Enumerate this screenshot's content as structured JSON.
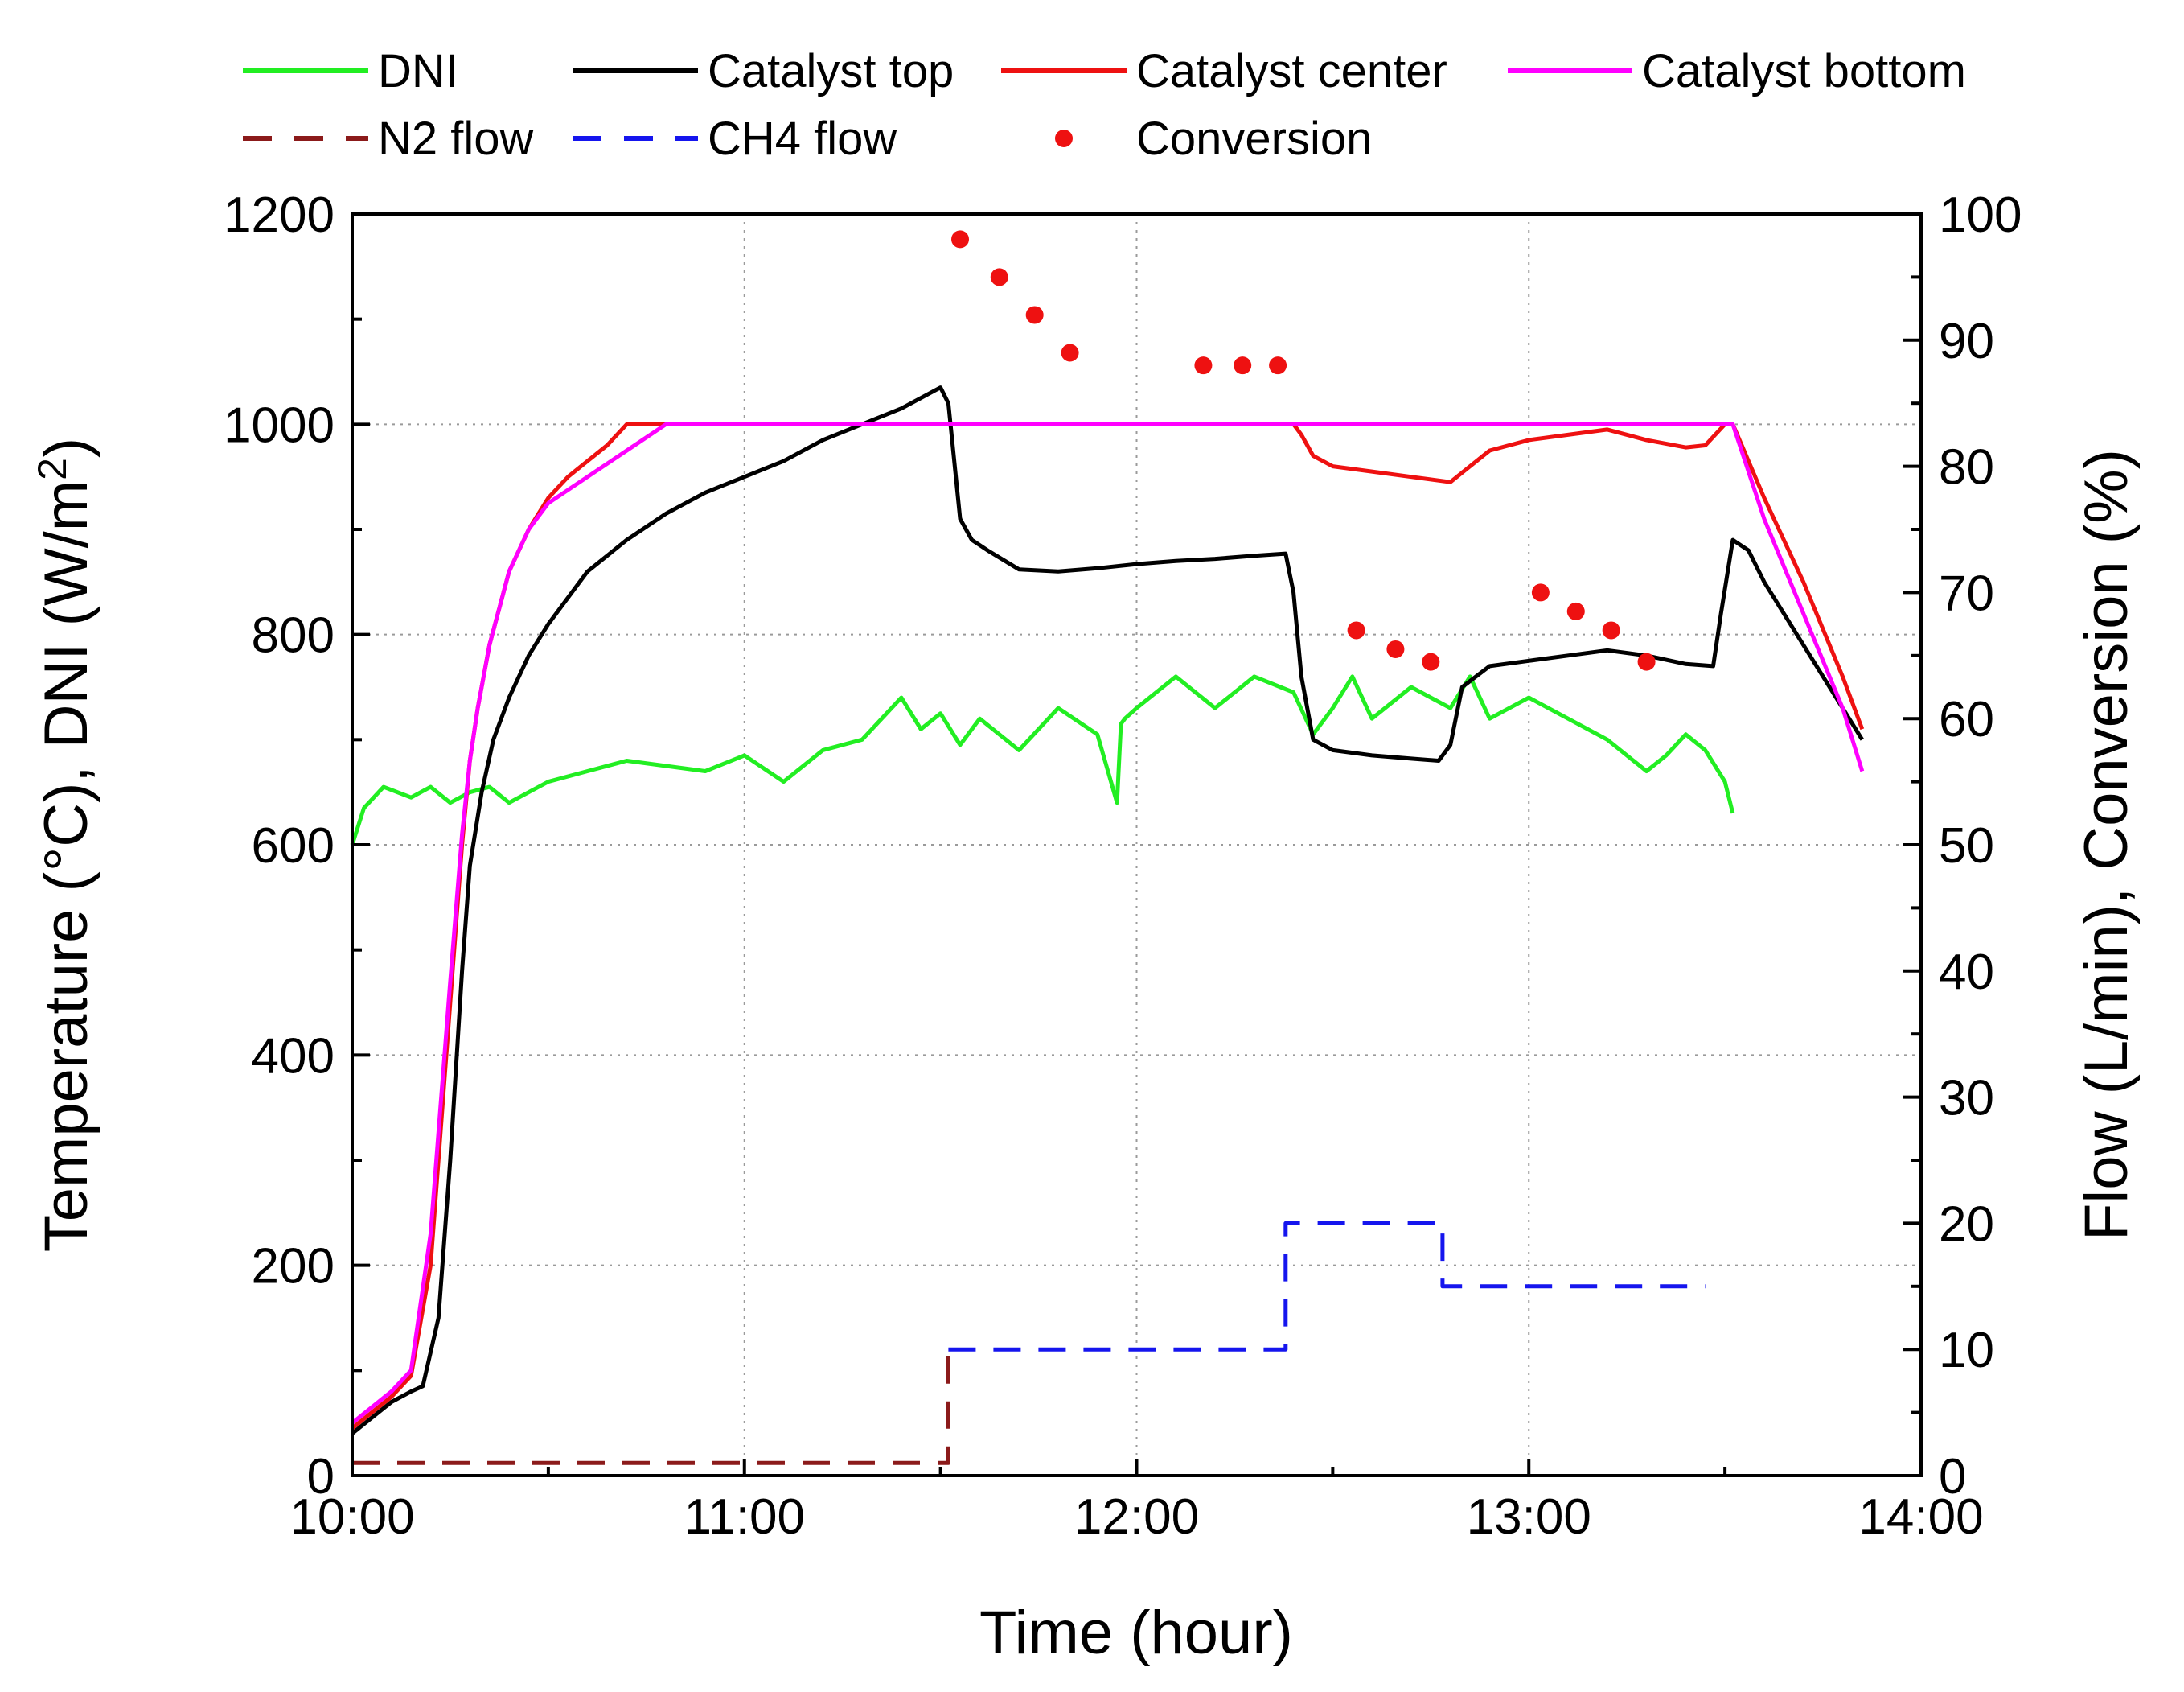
{
  "chart_data": {
    "type": "line",
    "title": "",
    "xlabel": "Time (hour)",
    "ylabel_left": "Temperature (°C), DNI (W/m²)",
    "ylabel_left_parts": [
      "Temperature (°C), DNI (W/m",
      "2",
      ")"
    ],
    "ylabel_right": "Flow (L/min), Conversion (%)",
    "xlim": [
      10,
      14
    ],
    "ylim_left": [
      0,
      1200
    ],
    "ylim_right": [
      0,
      100
    ],
    "grid": "dotted horizontal and vertical at major ticks",
    "legend_position": "top, above plot",
    "x_ticks": [
      {
        "value": 10,
        "label": "10:00"
      },
      {
        "value": 11,
        "label": "11:00"
      },
      {
        "value": 12,
        "label": "12:00"
      },
      {
        "value": 13,
        "label": "13:00"
      },
      {
        "value": 14,
        "label": "14:00"
      }
    ],
    "y_left_ticks": [
      {
        "value": 0,
        "label": "0"
      },
      {
        "value": 200,
        "label": "200"
      },
      {
        "value": 400,
        "label": "400"
      },
      {
        "value": 600,
        "label": "600"
      },
      {
        "value": 800,
        "label": "800"
      },
      {
        "value": 1000,
        "label": "1000"
      },
      {
        "value": 1200,
        "label": "1200"
      }
    ],
    "y_right_ticks": [
      {
        "value": 0,
        "label": "0"
      },
      {
        "value": 10,
        "label": "10"
      },
      {
        "value": 20,
        "label": "20"
      },
      {
        "value": 30,
        "label": "30"
      },
      {
        "value": 40,
        "label": "40"
      },
      {
        "value": 50,
        "label": "50"
      },
      {
        "value": 60,
        "label": "60"
      },
      {
        "value": 70,
        "label": "70"
      },
      {
        "value": 80,
        "label": "80"
      },
      {
        "value": 90,
        "label": "90"
      },
      {
        "value": 100,
        "label": "100"
      }
    ],
    "series": [
      {
        "name": "DNI",
        "axis": "left",
        "color": "#22ee22",
        "style": "solid",
        "x": [
          10.0,
          10.03,
          10.08,
          10.15,
          10.2,
          10.25,
          10.3,
          10.35,
          10.4,
          10.5,
          10.6,
          10.7,
          10.8,
          10.9,
          11.0,
          11.1,
          11.2,
          11.3,
          11.4,
          11.45,
          11.5,
          11.55,
          11.6,
          11.7,
          11.8,
          11.9,
          11.95,
          11.96,
          11.97,
          12.0,
          12.1,
          12.2,
          12.3,
          12.4,
          12.45,
          12.5,
          12.55,
          12.6,
          12.7,
          12.8,
          12.85,
          12.9,
          13.0,
          13.1,
          13.2,
          13.3,
          13.35,
          13.4,
          13.45,
          13.5,
          13.52
        ],
        "y": [
          600,
          635,
          655,
          645,
          655,
          640,
          650,
          655,
          640,
          660,
          670,
          680,
          675,
          670,
          685,
          660,
          690,
          700,
          740,
          710,
          725,
          695,
          720,
          690,
          730,
          705,
          640,
          715,
          720,
          730,
          760,
          730,
          760,
          745,
          705,
          730,
          760,
          720,
          750,
          730,
          760,
          720,
          740,
          720,
          700,
          670,
          685,
          705,
          690,
          660,
          630
        ]
      },
      {
        "name": "Catalyst top",
        "axis": "left",
        "color": "#000000",
        "style": "solid",
        "x": [
          10.0,
          10.05,
          10.1,
          10.15,
          10.18,
          10.22,
          10.25,
          10.28,
          10.3,
          10.33,
          10.36,
          10.4,
          10.45,
          10.5,
          10.6,
          10.7,
          10.8,
          10.9,
          11.0,
          11.1,
          11.2,
          11.3,
          11.4,
          11.45,
          11.5,
          11.52,
          11.55,
          11.58,
          11.62,
          11.7,
          11.8,
          11.9,
          12.0,
          12.1,
          12.2,
          12.3,
          12.38,
          12.4,
          12.42,
          12.45,
          12.5,
          12.6,
          12.7,
          12.77,
          12.8,
          12.83,
          12.9,
          13.0,
          13.1,
          13.2,
          13.3,
          13.4,
          13.47,
          13.49,
          13.52,
          13.56,
          13.6,
          13.7,
          13.8,
          13.85
        ],
        "y": [
          40,
          55,
          70,
          80,
          85,
          150,
          300,
          480,
          580,
          650,
          700,
          740,
          780,
          810,
          860,
          890,
          915,
          935,
          950,
          965,
          985,
          1000,
          1015,
          1025,
          1035,
          1020,
          910,
          890,
          880,
          862,
          860,
          863,
          867,
          870,
          872,
          875,
          877,
          840,
          760,
          700,
          690,
          685,
          682,
          680,
          695,
          750,
          770,
          775,
          780,
          785,
          780,
          772,
          770,
          820,
          890,
          880,
          850,
          790,
          730,
          700
        ]
      },
      {
        "name": "Catalyst center",
        "axis": "left",
        "color": "#ee1111",
        "style": "solid",
        "x": [
          10.0,
          10.05,
          10.1,
          10.15,
          10.2,
          10.25,
          10.28,
          10.3,
          10.32,
          10.35,
          10.4,
          10.45,
          10.5,
          10.55,
          10.6,
          10.65,
          10.7,
          10.75,
          11.0,
          11.5,
          12.0,
          12.4,
          12.42,
          12.45,
          12.5,
          12.6,
          12.7,
          12.8,
          12.85,
          12.9,
          13.0,
          13.1,
          13.2,
          13.3,
          13.4,
          13.45,
          13.5,
          13.52,
          13.6,
          13.7,
          13.8,
          13.85
        ],
        "y": [
          45,
          60,
          75,
          95,
          200,
          450,
          600,
          680,
          730,
          790,
          860,
          900,
          930,
          950,
          965,
          980,
          1000,
          1000,
          1000,
          1000,
          1000,
          1000,
          990,
          970,
          960,
          955,
          950,
          945,
          960,
          975,
          985,
          990,
          995,
          985,
          978,
          980,
          1000,
          1000,
          930,
          850,
          760,
          710
        ]
      },
      {
        "name": "Catalyst bottom",
        "axis": "left",
        "color": "#ff00ff",
        "style": "solid",
        "x": [
          10.0,
          10.05,
          10.1,
          10.15,
          10.2,
          10.25,
          10.28,
          10.3,
          10.32,
          10.35,
          10.4,
          10.45,
          10.5,
          10.6,
          10.7,
          10.8,
          11.0,
          11.5,
          12.0,
          12.5,
          13.0,
          13.5,
          13.52,
          13.6,
          13.7,
          13.8,
          13.85
        ],
        "y": [
          50,
          65,
          80,
          100,
          230,
          470,
          610,
          680,
          730,
          790,
          860,
          900,
          925,
          950,
          975,
          1000,
          1000,
          1000,
          1000,
          1000,
          1000,
          1000,
          1000,
          910,
          820,
          730,
          670
        ]
      },
      {
        "name": "N2 flow",
        "axis": "right",
        "color": "#8b1a1a",
        "style": "dashed",
        "x": [
          10.0,
          11.52,
          11.52
        ],
        "y": [
          1,
          1,
          10
        ]
      },
      {
        "name": "CH4 flow",
        "axis": "right",
        "color": "#1515ee",
        "style": "dashed",
        "x": [
          11.52,
          12.38,
          12.38,
          12.78,
          12.78,
          13.45
        ],
        "y": [
          10,
          10,
          20,
          20,
          15,
          15
        ]
      },
      {
        "name": "Conversion",
        "axis": "right",
        "color": "#ee1111",
        "style": "markers",
        "x": [
          11.55,
          11.65,
          11.74,
          11.83,
          12.17,
          12.27,
          12.36,
          12.56,
          12.66,
          12.75,
          13.03,
          13.12,
          13.21,
          13.3
        ],
        "y": [
          98,
          95,
          92,
          89,
          88,
          88,
          88,
          67,
          65.5,
          64.5,
          70,
          68.5,
          67,
          64.5
        ]
      }
    ],
    "legend": [
      {
        "label": "DNI",
        "series": "DNI"
      },
      {
        "label": "Catalyst top",
        "series": "Catalyst top"
      },
      {
        "label": "Catalyst center",
        "series": "Catalyst center"
      },
      {
        "label": "Catalyst bottom",
        "series": "Catalyst bottom"
      },
      {
        "label": "N2 flow",
        "series": "N2 flow"
      },
      {
        "label": "CH4 flow",
        "series": "CH4 flow"
      },
      {
        "label": "Conversion",
        "series": "Conversion"
      }
    ]
  }
}
